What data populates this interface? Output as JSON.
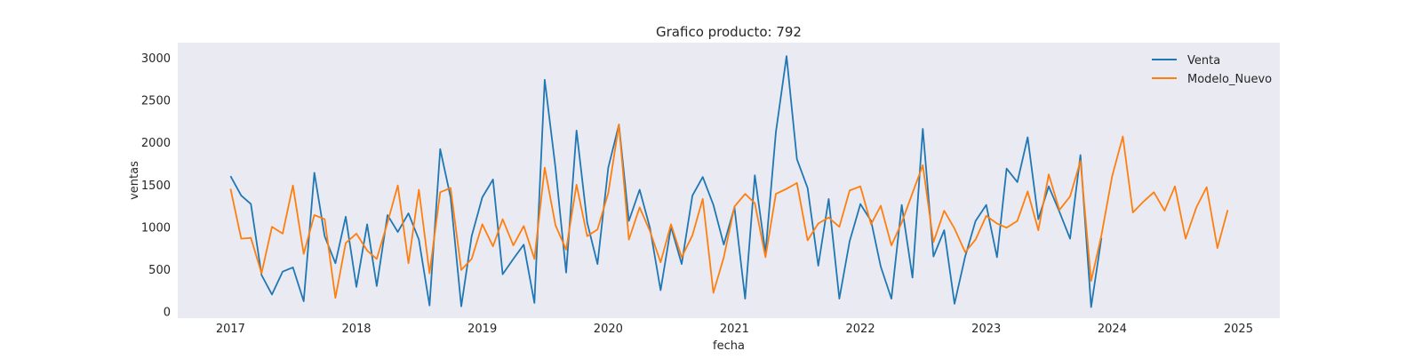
{
  "chart_data": {
    "type": "line",
    "title": "Grafico producto: 792",
    "xlabel": "fecha",
    "ylabel": "ventas",
    "x_domain": [
      "2016-08-01",
      "2025-05-01"
    ],
    "ylim": [
      -80,
      3180
    ],
    "x_ticks": [
      "2017-01-01",
      "2018-01-01",
      "2019-01-01",
      "2020-01-01",
      "2021-01-01",
      "2022-01-01",
      "2023-01-01",
      "2024-01-01",
      "2025-01-01"
    ],
    "x_tick_labels": [
      "2017",
      "2018",
      "2019",
      "2020",
      "2021",
      "2022",
      "2023",
      "2024",
      "2025"
    ],
    "y_ticks": [
      0,
      500,
      1000,
      1500,
      2000,
      2500,
      3000
    ],
    "y_tick_labels": [
      "0",
      "500",
      "1000",
      "1500",
      "2000",
      "2500",
      "3000"
    ],
    "grid": false,
    "legend_position": "top-right",
    "background": "#eaeaf2",
    "series": [
      {
        "name": "Venta",
        "color": "#1f77b4",
        "x": [
          "2017-01-01",
          "2017-02-01",
          "2017-03-01",
          "2017-04-01",
          "2017-05-01",
          "2017-06-01",
          "2017-07-01",
          "2017-08-01",
          "2017-09-01",
          "2017-10-01",
          "2017-11-01",
          "2017-12-01",
          "2018-01-01",
          "2018-02-01",
          "2018-03-01",
          "2018-04-01",
          "2018-05-01",
          "2018-06-01",
          "2018-07-01",
          "2018-08-01",
          "2018-09-01",
          "2018-10-01",
          "2018-11-01",
          "2018-12-01",
          "2019-01-01",
          "2019-02-01",
          "2019-03-01",
          "2019-04-01",
          "2019-05-01",
          "2019-06-01",
          "2019-07-01",
          "2019-08-01",
          "2019-09-01",
          "2019-10-01",
          "2019-11-01",
          "2019-12-01",
          "2020-01-01",
          "2020-02-01",
          "2020-03-01",
          "2020-04-01",
          "2020-05-01",
          "2020-06-01",
          "2020-07-01",
          "2020-08-01",
          "2020-09-01",
          "2020-10-01",
          "2020-11-01",
          "2020-12-01",
          "2021-01-01",
          "2021-02-01",
          "2021-03-01",
          "2021-04-01",
          "2021-05-01",
          "2021-06-01",
          "2021-07-01",
          "2021-08-01",
          "2021-09-01",
          "2021-10-01",
          "2021-11-01",
          "2021-12-01",
          "2022-01-01",
          "2022-02-01",
          "2022-03-01",
          "2022-04-01",
          "2022-05-01",
          "2022-06-01",
          "2022-07-01",
          "2022-08-01",
          "2022-09-01",
          "2022-10-01",
          "2022-11-01",
          "2022-12-01",
          "2023-01-01",
          "2023-02-01",
          "2023-03-01",
          "2023-04-01",
          "2023-05-01",
          "2023-06-01",
          "2023-07-01",
          "2023-08-01",
          "2023-09-01",
          "2023-10-01",
          "2023-11-01",
          "2023-12-01"
        ],
        "values": [
          1600,
          1370,
          1270,
          430,
          200,
          470,
          520,
          120,
          1640,
          890,
          570,
          1120,
          290,
          1030,
          300,
          1140,
          940,
          1160,
          850,
          70,
          1920,
          1350,
          60,
          890,
          1350,
          1560,
          440,
          620,
          790,
          100,
          2740,
          1700,
          460,
          2140,
          1050,
          560,
          1700,
          2210,
          1070,
          1440,
          990,
          250,
          1000,
          560,
          1370,
          1590,
          1260,
          790,
          1230,
          150,
          1610,
          690,
          2120,
          3020,
          1800,
          1460,
          540,
          1330,
          150,
          830,
          1270,
          1070,
          530,
          150,
          1260,
          400,
          2160,
          650,
          960,
          90,
          650,
          1070,
          1260,
          640,
          1690,
          1530,
          2060,
          1090,
          1480,
          1180,
          860,
          1850,
          50,
          870
        ]
      },
      {
        "name": "Modelo_Nuevo",
        "color": "#ff7f0e",
        "x": [
          "2017-01-01",
          "2017-02-01",
          "2017-03-01",
          "2017-04-01",
          "2017-05-01",
          "2017-06-01",
          "2017-07-01",
          "2017-08-01",
          "2017-09-01",
          "2017-10-01",
          "2017-11-01",
          "2017-12-01",
          "2018-01-01",
          "2018-02-01",
          "2018-03-01",
          "2018-04-01",
          "2018-05-01",
          "2018-06-01",
          "2018-07-01",
          "2018-08-01",
          "2018-09-01",
          "2018-10-01",
          "2018-11-01",
          "2018-12-01",
          "2019-01-01",
          "2019-02-01",
          "2019-03-01",
          "2019-04-01",
          "2019-05-01",
          "2019-06-01",
          "2019-07-01",
          "2019-08-01",
          "2019-09-01",
          "2019-10-01",
          "2019-11-01",
          "2019-12-01",
          "2020-01-01",
          "2020-02-01",
          "2020-03-01",
          "2020-04-01",
          "2020-05-01",
          "2020-06-01",
          "2020-07-01",
          "2020-08-01",
          "2020-09-01",
          "2020-10-01",
          "2020-11-01",
          "2020-12-01",
          "2021-01-01",
          "2021-02-01",
          "2021-03-01",
          "2021-04-01",
          "2021-05-01",
          "2021-06-01",
          "2021-07-01",
          "2021-08-01",
          "2021-09-01",
          "2021-10-01",
          "2021-11-01",
          "2021-12-01",
          "2022-01-01",
          "2022-02-01",
          "2022-03-01",
          "2022-04-01",
          "2022-05-01",
          "2022-06-01",
          "2022-07-01",
          "2022-08-01",
          "2022-09-01",
          "2022-10-01",
          "2022-11-01",
          "2022-12-01",
          "2023-01-01",
          "2023-02-01",
          "2023-03-01",
          "2023-04-01",
          "2023-05-01",
          "2023-06-01",
          "2023-07-01",
          "2023-08-01",
          "2023-09-01",
          "2023-10-01",
          "2023-11-01",
          "2023-12-01",
          "2024-01-01",
          "2024-02-01",
          "2024-03-01",
          "2024-04-01",
          "2024-05-01",
          "2024-06-01",
          "2024-07-01",
          "2024-08-01",
          "2024-09-01",
          "2024-10-01",
          "2024-11-01",
          "2024-12-01"
        ],
        "values": [
          1450,
          860,
          870,
          450,
          1000,
          920,
          1490,
          680,
          1140,
          1090,
          160,
          810,
          920,
          720,
          620,
          1050,
          1490,
          570,
          1440,
          450,
          1410,
          1460,
          490,
          620,
          1030,
          770,
          1090,
          780,
          1010,
          620,
          1700,
          1020,
          730,
          1500,
          890,
          970,
          1400,
          2210,
          850,
          1230,
          950,
          580,
          1030,
          640,
          900,
          1330,
          220,
          640,
          1240,
          1390,
          1280,
          640,
          1390,
          1450,
          1520,
          840,
          1040,
          1110,
          1000,
          1430,
          1480,
          1030,
          1250,
          780,
          1050,
          1400,
          1730,
          820,
          1190,
          980,
          700,
          850,
          1130,
          1040,
          990,
          1070,
          1420,
          960,
          1620,
          1200,
          1360,
          1780,
          360,
          900,
          1600,
          2070,
          1170,
          1300,
          1410,
          1190,
          1480,
          860,
          1230,
          1470,
          750,
          1200
        ]
      }
    ]
  }
}
